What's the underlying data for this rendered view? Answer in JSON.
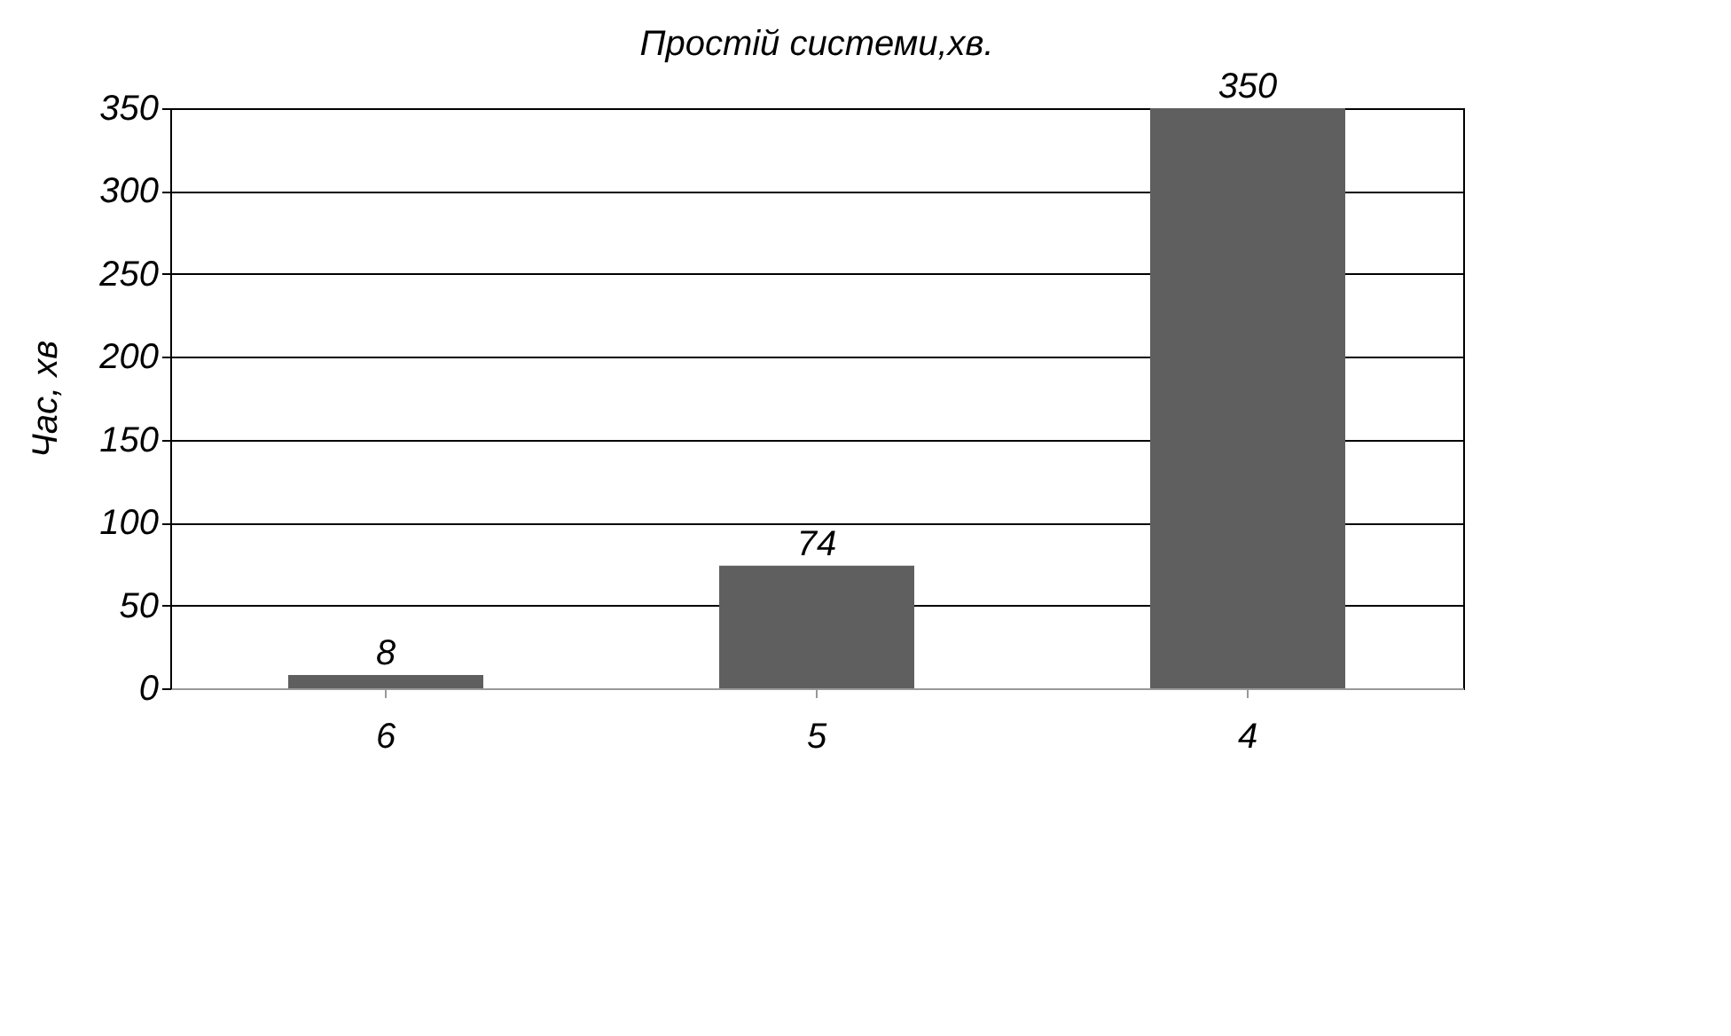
{
  "chart_data": {
    "type": "bar",
    "title": "Простій системи,хв.",
    "ylabel": "Час, хв",
    "categories": [
      "6",
      "5",
      "4"
    ],
    "values": [
      8,
      74,
      350
    ],
    "color": "#5f5f5f",
    "ylim": [
      0,
      350
    ],
    "yticks": [
      0,
      50,
      100,
      150,
      200,
      250,
      300,
      350
    ],
    "grid": "y",
    "data_labels": true
  }
}
